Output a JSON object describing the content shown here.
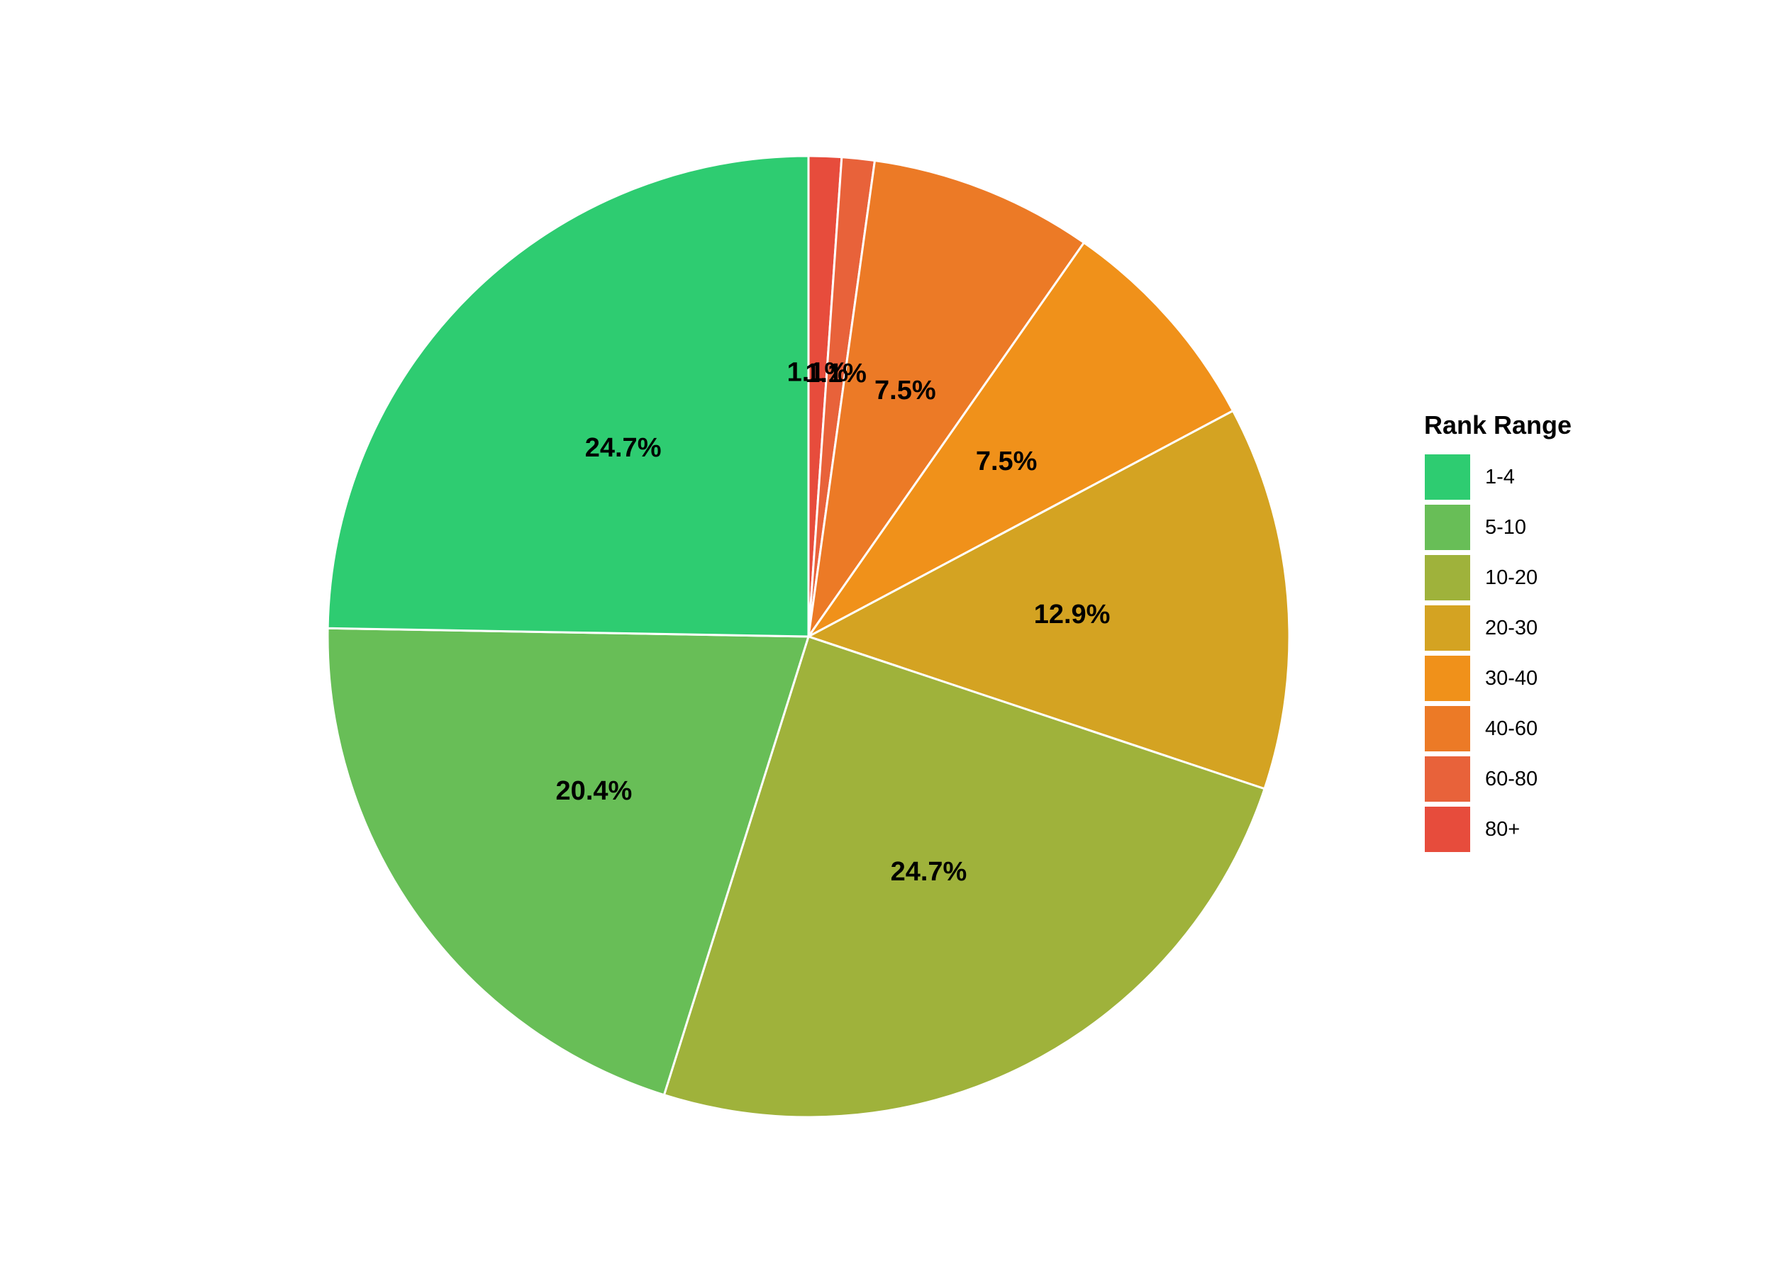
{
  "chart_data": {
    "type": "pie",
    "title": "",
    "legend_title": "Rank Range",
    "legend_position": "right",
    "start_angle": "12 o'clock",
    "direction": "clockwise",
    "slices": [
      {
        "name": "80+",
        "value": 1.1,
        "label": "1.1%",
        "color": "#e74c3c"
      },
      {
        "name": "60-80",
        "value": 1.1,
        "label": "1.1%",
        "color": "#e8623a"
      },
      {
        "name": "40-60",
        "value": 7.5,
        "label": "7.5%",
        "color": "#ec7a26"
      },
      {
        "name": "30-40",
        "value": 7.5,
        "label": "7.5%",
        "color": "#f0911a"
      },
      {
        "name": "20-30",
        "value": 12.9,
        "label": "12.9%",
        "color": "#d4a322"
      },
      {
        "name": "10-20",
        "value": 24.7,
        "label": "24.7%",
        "color": "#9fb23b"
      },
      {
        "name": "5-10",
        "value": 20.4,
        "label": "20.4%",
        "color": "#68be57"
      },
      {
        "name": "1-4",
        "value": 24.7,
        "label": "24.7%",
        "color": "#2ecc71"
      }
    ],
    "legend_order": [
      "1-4",
      "5-10",
      "10-20",
      "20-30",
      "30-40",
      "40-60",
      "60-80",
      "80+"
    ]
  }
}
